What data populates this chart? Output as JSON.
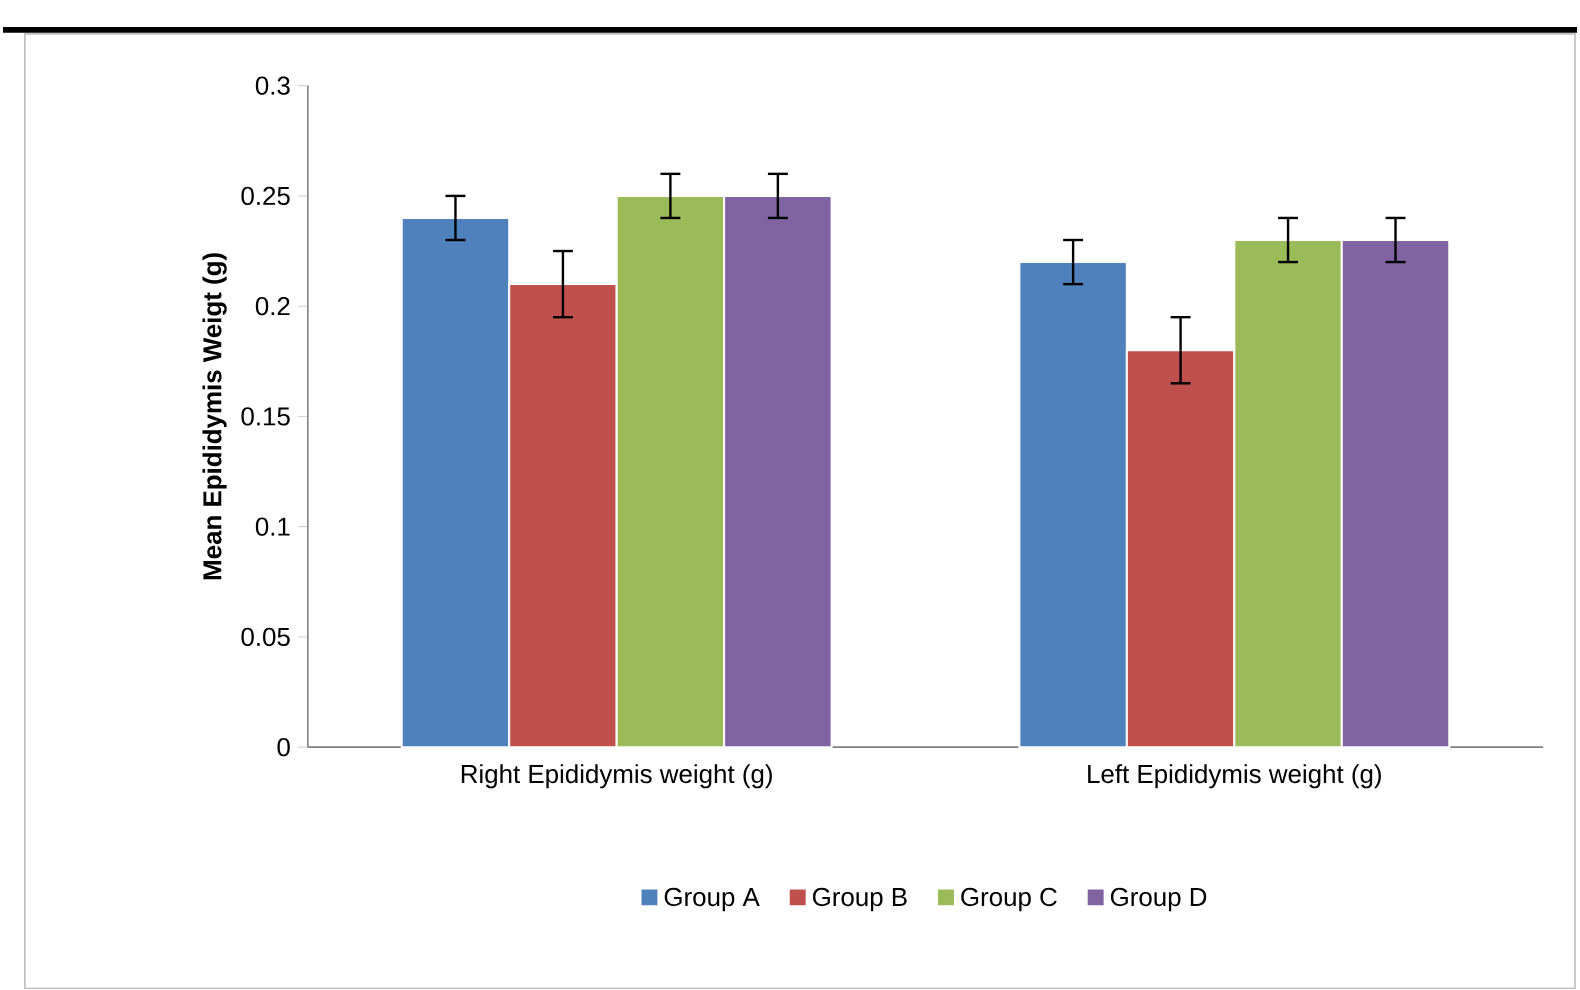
{
  "chart_data": {
    "type": "bar",
    "ylabel": "Mean Epididymis Weigt (g)",
    "categories": [
      "Right Epididymis weight (g)",
      "Left Epididymis weight (g)"
    ],
    "series": [
      {
        "name": "Group A",
        "color": "#4f81bd",
        "values": [
          0.24,
          0.22
        ],
        "errors": [
          0.01,
          0.01
        ]
      },
      {
        "name": "Group B",
        "color": "#c0504d",
        "values": [
          0.21,
          0.18
        ],
        "errors": [
          0.015,
          0.015
        ]
      },
      {
        "name": "Group C",
        "color": "#9bbb59",
        "values": [
          0.25,
          0.23
        ],
        "errors": [
          0.01,
          0.01
        ]
      },
      {
        "name": "Group D",
        "color": "#8064a2",
        "values": [
          0.25,
          0.23
        ],
        "errors": [
          0.01,
          0.01
        ]
      }
    ],
    "ylim": [
      0,
      0.3
    ],
    "yticks": [
      0,
      0.05,
      0.1,
      0.15,
      0.2,
      0.25,
      0.3
    ],
    "grid": false,
    "legend": "bottom"
  }
}
